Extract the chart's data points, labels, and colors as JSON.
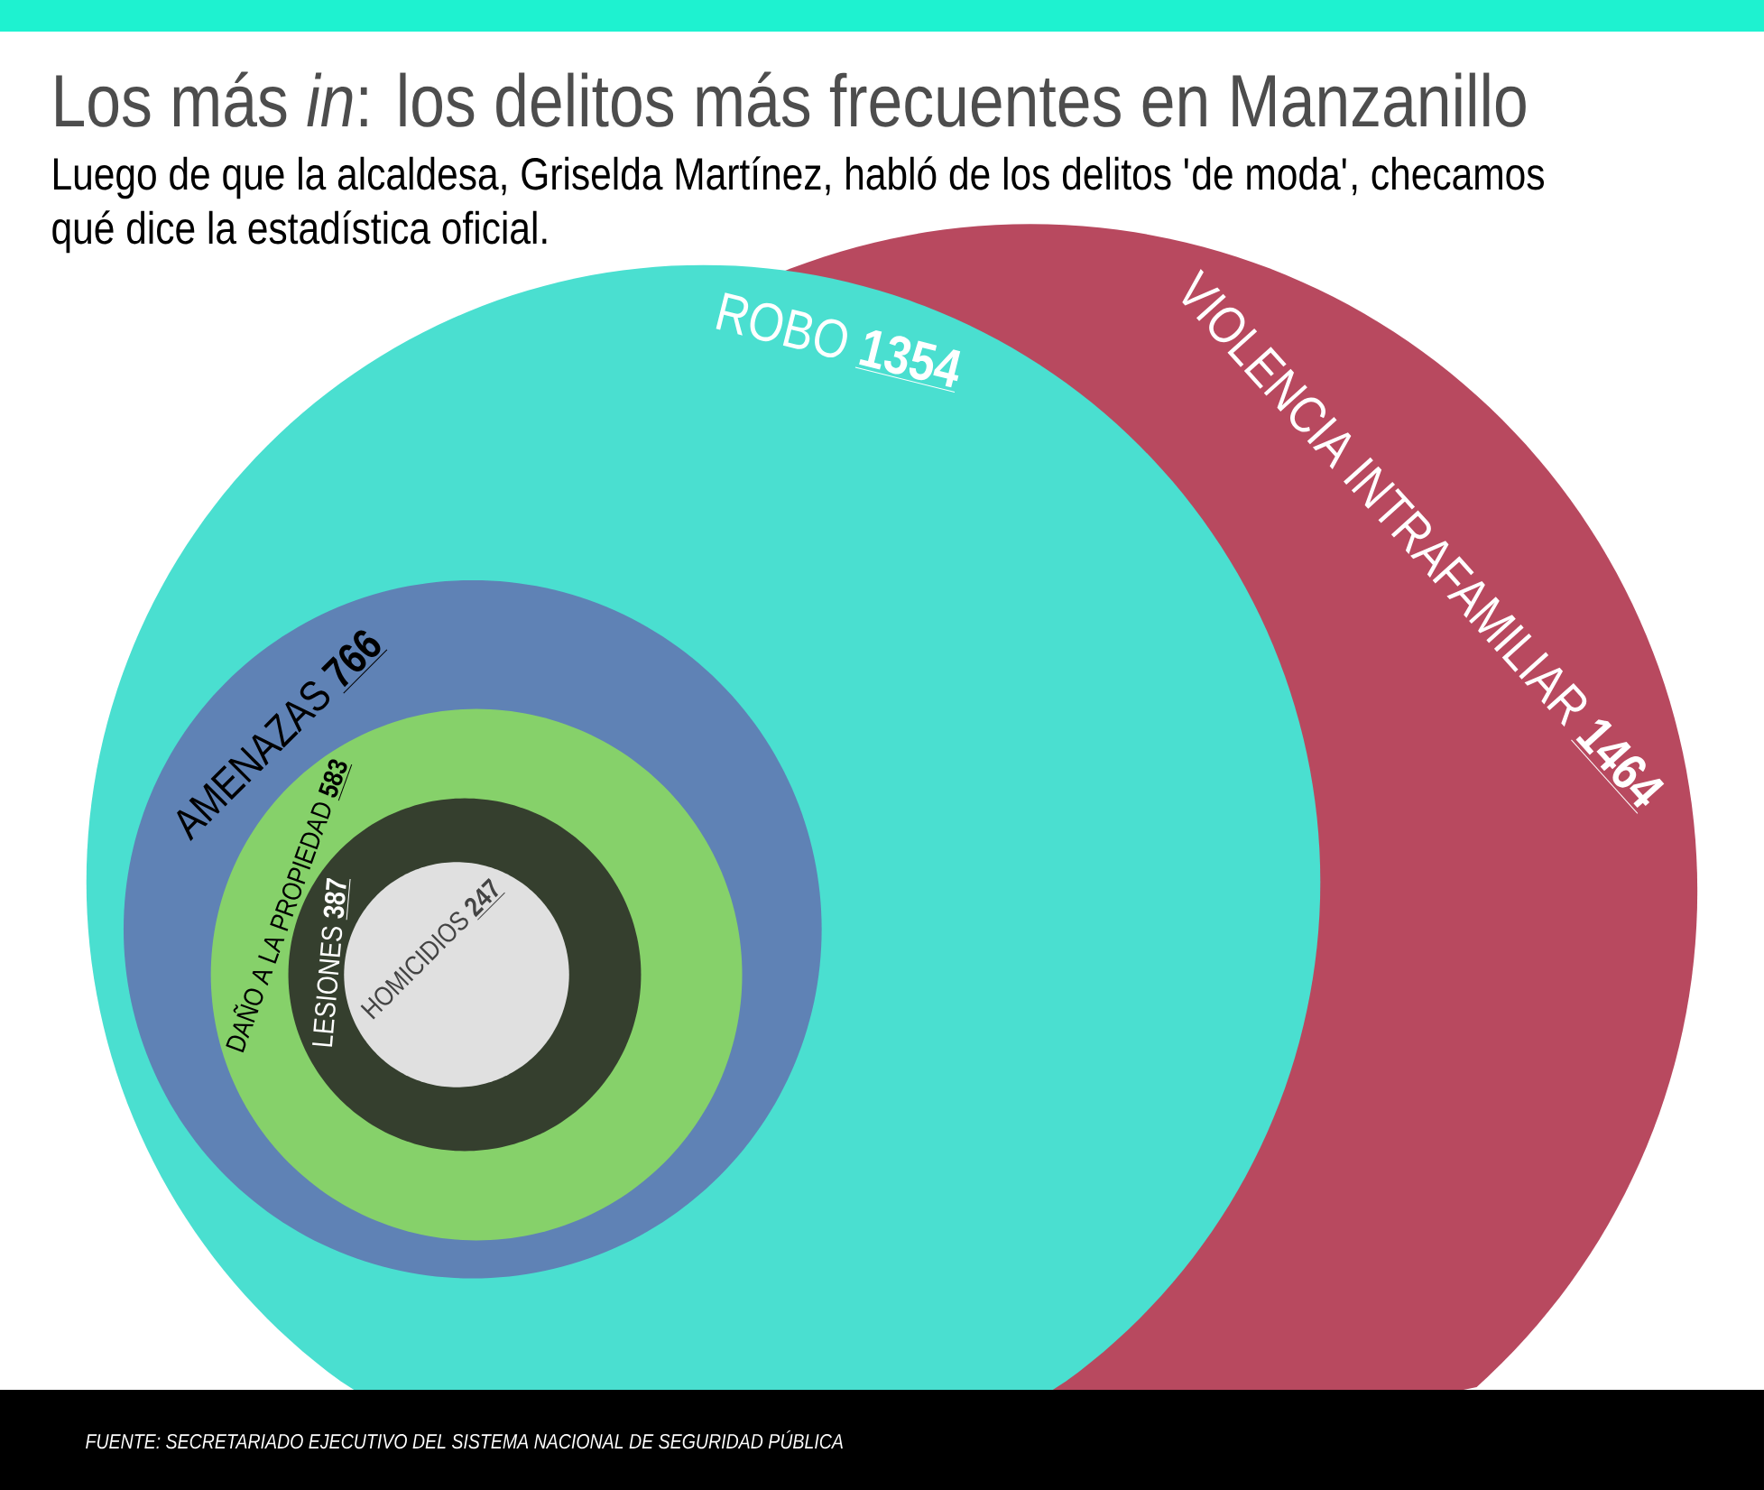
{
  "chart_data": {
    "type": "other",
    "title": "Los más *in*: los delitos más frecuentes en Manzanillo",
    "subtitle": "Luego de que la alcaldesa, Griselda Martínez, habló de los delitos 'de moda', checamos qué dice la estadística oficial.",
    "categories": [
      "VIOLENCIA INTRAFAMILIAR",
      "ROBO",
      "AMENAZAS",
      "DAÑO A LA PROPIEDAD",
      "LESIONES",
      "HOMICIDIOS"
    ],
    "values": [
      1464,
      1354,
      766,
      583,
      387,
      247
    ],
    "colors": [
      "#b8495f",
      "#4adfd0",
      "#5f82b5",
      "#86d16a",
      "#353f2e",
      "#e0e0e0"
    ],
    "data_labels": true,
    "annotations": [
      "FUENTE: SECRETARIADO EJECUTIVO DEL SISTEMA NACIONAL DE SEGURIDAD PÚBLICA"
    ]
  }
}
